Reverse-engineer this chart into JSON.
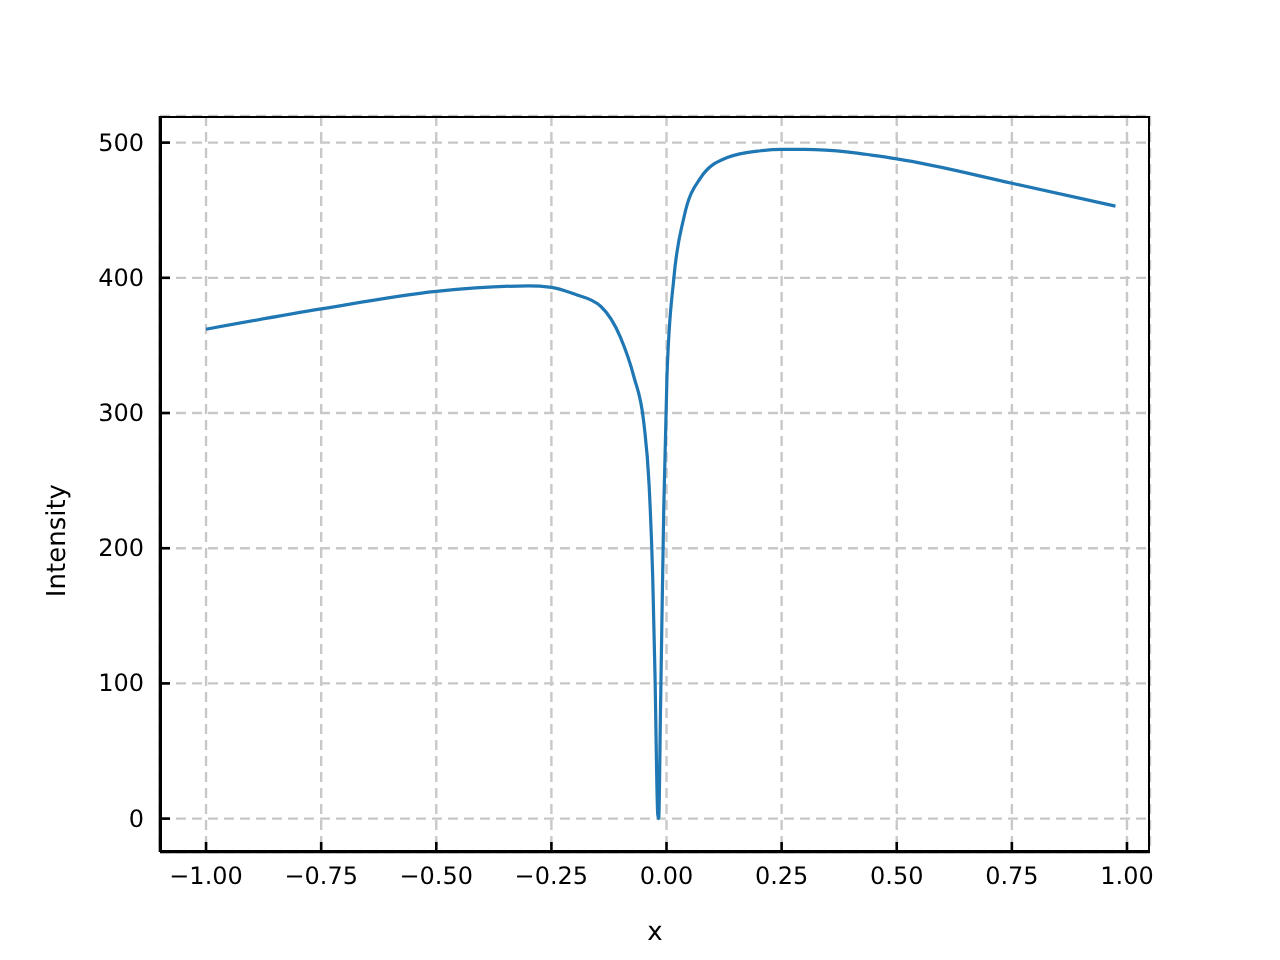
{
  "chart_data": {
    "type": "line",
    "xlabel": "x",
    "ylabel": "Intensity",
    "x": [
      -1.0,
      -0.75,
      -0.5,
      -0.3,
      -0.25,
      -0.2,
      -0.143,
      -0.1,
      -0.071,
      -0.049,
      -0.038,
      -0.03,
      -0.025,
      -0.019,
      -0.017,
      -0.013,
      -0.006,
      0.001,
      0.016,
      0.038,
      0.074,
      0.132,
      0.204,
      0.25,
      0.3,
      0.5,
      0.75,
      0.975
    ],
    "series": [
      {
        "color": "#1f77b4",
        "values": [
          362,
          377,
          390,
          394,
          393,
          388,
          379,
          356,
          327,
          292,
          248,
          179,
          106,
          3,
          0,
          81,
          229,
          327,
          400,
          445,
          474,
          489,
          494,
          495,
          495,
          488,
          470,
          453
        ]
      }
    ],
    "xlim": [
      -1.1,
      1.05
    ],
    "ylim": [
      -24.7,
      519.7
    ],
    "xticks": [
      {
        "value": -1,
        "label": "−1.00"
      },
      {
        "value": -0.75,
        "label": "−0.75"
      },
      {
        "value": -0.5,
        "label": "−0.50"
      },
      {
        "value": -0.25,
        "label": "−0.25"
      },
      {
        "value": 0,
        "label": "0.00"
      },
      {
        "value": 0.25,
        "label": "0.25"
      },
      {
        "value": 0.5,
        "label": "0.50"
      },
      {
        "value": 0.75,
        "label": "0.75"
      },
      {
        "value": 1,
        "label": "1.00"
      }
    ],
    "yticks": [
      0,
      100,
      200,
      300,
      400,
      500
    ],
    "grid": true,
    "line_style": "solid",
    "marker": "none",
    "legend": false
  }
}
